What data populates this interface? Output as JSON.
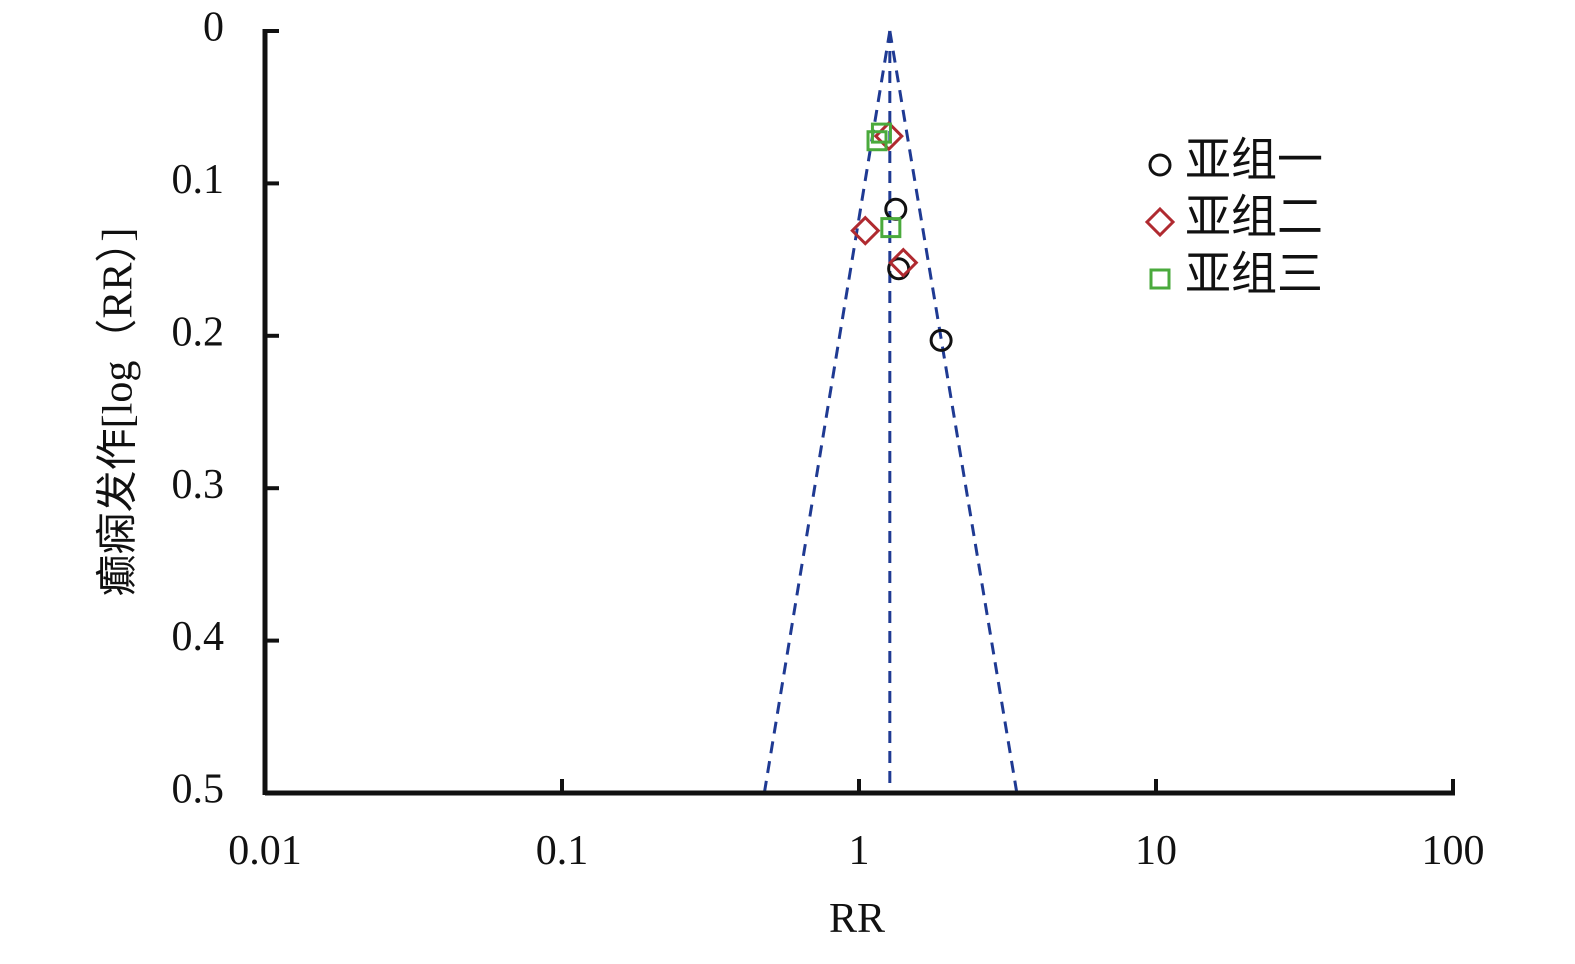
{
  "chart_data": {
    "type": "funnel",
    "x_label": "RR",
    "y_label": "癫痫发作[log（RR）]",
    "xscale": "log",
    "xlim": [
      0.01,
      100
    ],
    "xticks": [
      0.01,
      0.1,
      1,
      10,
      100
    ],
    "ylim": [
      0,
      0.5
    ],
    "yticks": [
      0,
      0.1,
      0.2,
      0.3,
      0.4,
      0.5
    ],
    "y_inverted": true,
    "funnel": {
      "center": 1.27,
      "lower": 0.48,
      "upper": 3.4,
      "color": "#1f3a93"
    },
    "legend": "upper right",
    "series": [
      {
        "name": "亚组一",
        "marker": "circle",
        "color": "#111111",
        "x": [
          1.33,
          1.36,
          1.89
        ],
        "values": [
          0.117,
          0.156,
          0.203
        ]
      },
      {
        "name": "亚组二",
        "marker": "diamond",
        "color": "#b02a30",
        "x": [
          1.26,
          1.05,
          1.41
        ],
        "values": [
          0.069,
          0.131,
          0.152
        ]
      },
      {
        "name": "亚组三",
        "marker": "square",
        "color": "#4aaa3c",
        "x": [
          1.15,
          1.28,
          1.19
        ],
        "values": [
          0.072,
          0.129,
          0.067
        ]
      }
    ]
  }
}
